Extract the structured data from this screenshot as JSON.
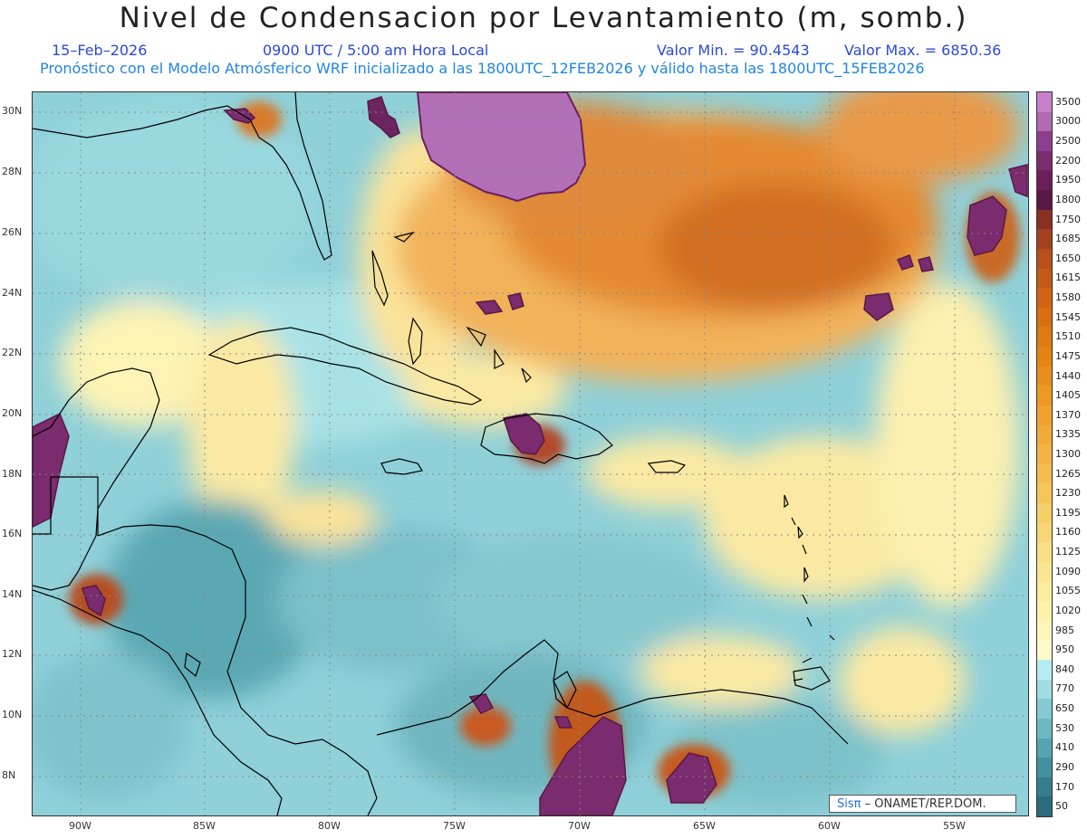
{
  "title": "Nivel de Condensacion por Levantamiento (m, somb.)",
  "date": "15–Feb–2026",
  "time": "0900 UTC / 5:00 am Hora Local",
  "min_label": "Valor Min. = 90.4543",
  "max_label": "Valor Max. = 6850.36",
  "subtitle": "Pronóstico con el Modelo Atmósferico WRF inicializado a las 1800UTC_12FEB2026 y válido hasta las  1800UTC_15FEB2026",
  "credit_brand": "Sisπ",
  "credit_text": "– ONAMET/REP.DOM.",
  "lat_labels": [
    "30N",
    "28N",
    "26N",
    "24N",
    "22N",
    "20N",
    "18N",
    "16N",
    "14N",
    "12N",
    "10N",
    "8N"
  ],
  "lon_labels": [
    "90W",
    "85W",
    "80W",
    "75W",
    "70W",
    "65W",
    "60W",
    "55W"
  ],
  "colorbar": {
    "labels": [
      "3500",
      "3000",
      "2500",
      "2200",
      "1950",
      "1800",
      "1750",
      "1685",
      "1650",
      "1615",
      "1580",
      "1545",
      "1510",
      "1475",
      "1440",
      "1405",
      "1370",
      "1335",
      "1300",
      "1265",
      "1230",
      "1195",
      "1160",
      "1125",
      "1090",
      "1055",
      "1020",
      "985",
      "950",
      "840",
      "770",
      "650",
      "530",
      "410",
      "290",
      "170",
      "50"
    ],
    "colors": [
      "#c77fcb",
      "#b06ab4",
      "#8c3f8e",
      "#7a2c6e",
      "#6b1f5a",
      "#5a1845",
      "#8a2f22",
      "#a5401f",
      "#b8501c",
      "#c55a18",
      "#cf6514",
      "#d87012",
      "#e07a12",
      "#e58416",
      "#e98e1c",
      "#ed9824",
      "#f0a12e",
      "#f2ab38",
      "#f4b444",
      "#f5bd50",
      "#f6c65c",
      "#f7cf69",
      "#f8d676",
      "#f9de84",
      "#faE592",
      "#fbeca0",
      "#fcf2ae",
      "#fdf6bb",
      "#fef9c8",
      "#b6ecef",
      "#9fdde3",
      "#86cbd3",
      "#6db8c2",
      "#57a4b1",
      "#4590a0",
      "#357d8f",
      "#2a6c7e"
    ]
  },
  "colors": {
    "title": "#222222",
    "subtitle": "#2b49d6",
    "subtitle2": "#1f86e0"
  }
}
